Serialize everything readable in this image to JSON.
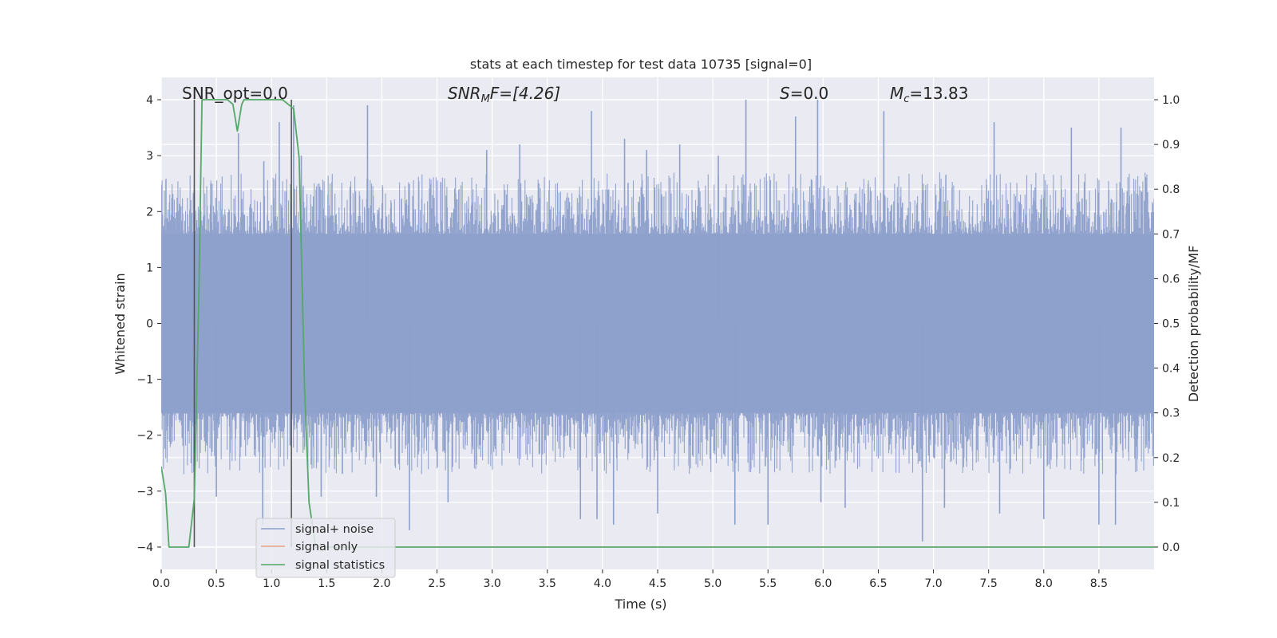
{
  "chart_data": {
    "type": "line",
    "title": "stats at each timestep for test data 10735 [signal=0]",
    "xlabel": "Time (s)",
    "ylabel_left": "Whitened strain",
    "ylabel_right": "Detection probability/MF",
    "xlim": [
      0.0,
      9.0
    ],
    "ylim_left": [
      -4.4,
      4.4
    ],
    "ylim_right": [
      -0.05,
      1.05
    ],
    "x_ticks": [
      "0.0",
      "0.5",
      "1.0",
      "1.5",
      "2.0",
      "2.5",
      "3.0",
      "3.5",
      "4.0",
      "4.5",
      "5.0",
      "5.5",
      "6.0",
      "6.5",
      "7.0",
      "7.5",
      "8.0",
      "8.5"
    ],
    "x_tick_values": [
      0,
      0.5,
      1,
      1.5,
      2,
      2.5,
      3,
      3.5,
      4,
      4.5,
      5,
      5.5,
      6,
      6.5,
      7,
      7.5,
      8,
      8.5
    ],
    "y_left_ticks": [
      "−4",
      "−3",
      "−2",
      "−1",
      "0",
      "1",
      "2",
      "3",
      "4"
    ],
    "y_left_tick_values": [
      -4,
      -3,
      -2,
      -1,
      0,
      1,
      2,
      3,
      4
    ],
    "y_right_ticks": [
      "0.0",
      "0.1",
      "0.2",
      "0.3",
      "0.4",
      "0.5",
      "0.6",
      "0.7",
      "0.8",
      "0.9",
      "1.0"
    ],
    "y_right_tick_values": [
      0,
      0.1,
      0.2,
      0.3,
      0.4,
      0.5,
      0.6,
      0.7,
      0.8,
      0.9,
      1.0
    ],
    "grid": true,
    "legend_position": "lower-left",
    "annotations": {
      "snr_opt": "SNR_opt=0.0",
      "snr_mf_main": "SNR",
      "snr_mf_sub": "M",
      "snr_mf_rest": "F=[4.26]",
      "s_main": "S",
      "s_rest": "=0.0",
      "mc_main": "M",
      "mc_sub": "c",
      "mc_rest": "=13.83"
    },
    "series": [
      {
        "name": "signal+ noise",
        "color": "#8da0cb",
        "style": "dense noise trace",
        "envelope_abs": 1.6,
        "peak_values": [
          [
            0.3,
            2.4
          ],
          [
            0.45,
            2.5
          ],
          [
            0.7,
            3.4
          ],
          [
            0.93,
            2.9
          ],
          [
            1.07,
            3.6
          ],
          [
            1.2,
            3.9
          ],
          [
            1.27,
            3.0
          ],
          [
            1.87,
            3.9
          ],
          [
            2.95,
            3.1
          ],
          [
            3.25,
            3.2
          ],
          [
            3.9,
            3.8
          ],
          [
            4.2,
            3.3
          ],
          [
            4.4,
            3.1
          ],
          [
            4.7,
            3.2
          ],
          [
            5.05,
            3.0
          ],
          [
            5.3,
            4.0
          ],
          [
            5.75,
            3.7
          ],
          [
            5.95,
            4.0
          ],
          [
            6.55,
            3.8
          ],
          [
            7.55,
            3.6
          ],
          [
            8.25,
            3.5
          ],
          [
            8.7,
            3.5
          ],
          [
            0.5,
            -3.1
          ],
          [
            0.92,
            -3.6
          ],
          [
            1.45,
            -3.1
          ],
          [
            1.95,
            -3.1
          ],
          [
            2.25,
            -3.7
          ],
          [
            2.6,
            -3.2
          ],
          [
            3.8,
            -3.5
          ],
          [
            3.95,
            -3.5
          ],
          [
            4.1,
            -3.6
          ],
          [
            4.5,
            -3.4
          ],
          [
            5.2,
            -3.6
          ],
          [
            5.5,
            -3.6
          ],
          [
            5.98,
            -3.2
          ],
          [
            6.2,
            -3.3
          ],
          [
            6.9,
            -3.9
          ],
          [
            7.1,
            -3.3
          ],
          [
            7.6,
            -3.4
          ],
          [
            8.0,
            -3.5
          ],
          [
            8.5,
            -3.6
          ],
          [
            8.65,
            -3.6
          ]
        ]
      },
      {
        "name": "signal only",
        "color": "#e5a384",
        "points": []
      },
      {
        "name": "signal statistics",
        "color": "#55a868",
        "axis": "right",
        "points": [
          [
            0.0,
            0.18
          ],
          [
            0.04,
            0.12
          ],
          [
            0.07,
            0.0
          ],
          [
            0.15,
            0.0
          ],
          [
            0.25,
            0.0
          ],
          [
            0.3,
            0.11
          ],
          [
            0.34,
            0.55
          ],
          [
            0.37,
            1.0
          ],
          [
            0.6,
            1.0
          ],
          [
            0.65,
            0.99
          ],
          [
            0.69,
            0.93
          ],
          [
            0.73,
            0.99
          ],
          [
            0.75,
            1.0
          ],
          [
            0.95,
            1.0
          ],
          [
            1.1,
            1.0
          ],
          [
            1.15,
            0.99
          ],
          [
            1.2,
            0.98
          ],
          [
            1.25,
            0.87
          ],
          [
            1.3,
            0.35
          ],
          [
            1.34,
            0.1
          ],
          [
            1.4,
            0.0
          ],
          [
            9.0,
            0.0
          ]
        ]
      }
    ],
    "vertical_lines": [
      {
        "x": 0.3,
        "y_range": [
          0.0,
          1.0
        ],
        "color": "#555555"
      },
      {
        "x": 1.18,
        "y_range": [
          0.0,
          1.0
        ],
        "color": "#555555"
      }
    ]
  }
}
